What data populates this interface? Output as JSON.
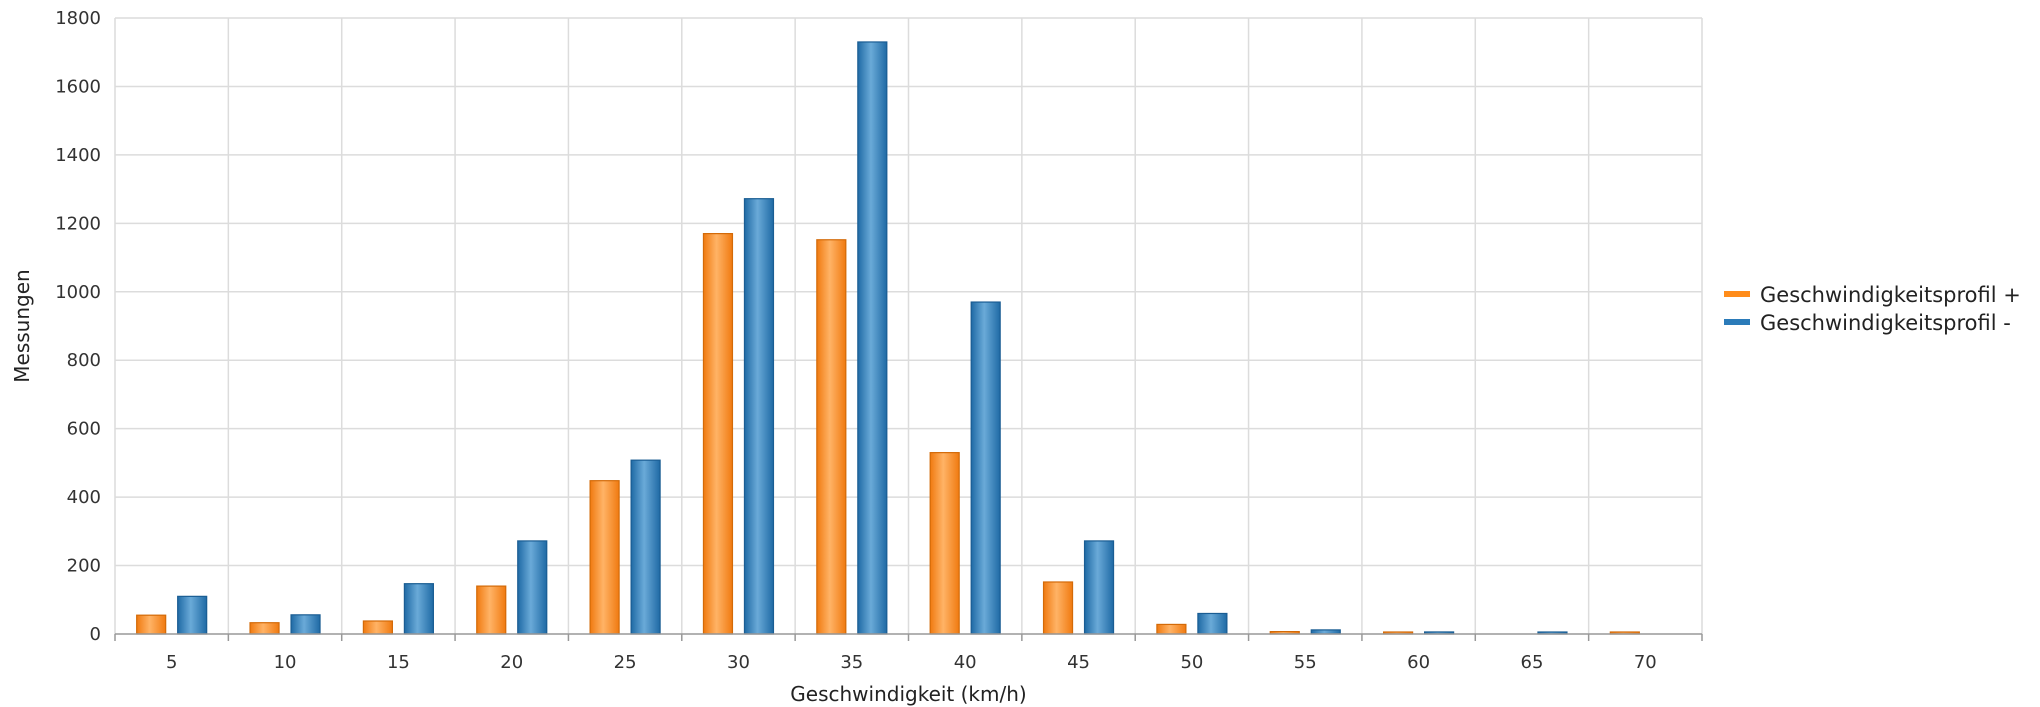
{
  "chart_data": {
    "type": "bar",
    "title": "",
    "xlabel": "Geschwindigkeit (km/h)",
    "ylabel": "Messungen",
    "ylim": [
      0,
      1800
    ],
    "yticks": [
      0,
      200,
      400,
      600,
      800,
      1000,
      1200,
      1400,
      1600,
      1800
    ],
    "grid": true,
    "legend_position": "right",
    "categories": [
      "5",
      "10",
      "15",
      "20",
      "25",
      "30",
      "35",
      "40",
      "45",
      "50",
      "55",
      "60",
      "65",
      "70"
    ],
    "series": [
      {
        "name": "Geschwindigkeitsprofil +",
        "color": "#ff8c1a",
        "values": [
          55,
          33,
          38,
          140,
          448,
          1170,
          1152,
          530,
          152,
          28,
          7,
          3,
          0,
          3
        ]
      },
      {
        "name": "Geschwindigkeitsprofil -",
        "color": "#2b7bb9",
        "values": [
          110,
          56,
          147,
          272,
          508,
          1272,
          1730,
          970,
          272,
          60,
          12,
          6,
          3,
          0
        ]
      }
    ]
  }
}
